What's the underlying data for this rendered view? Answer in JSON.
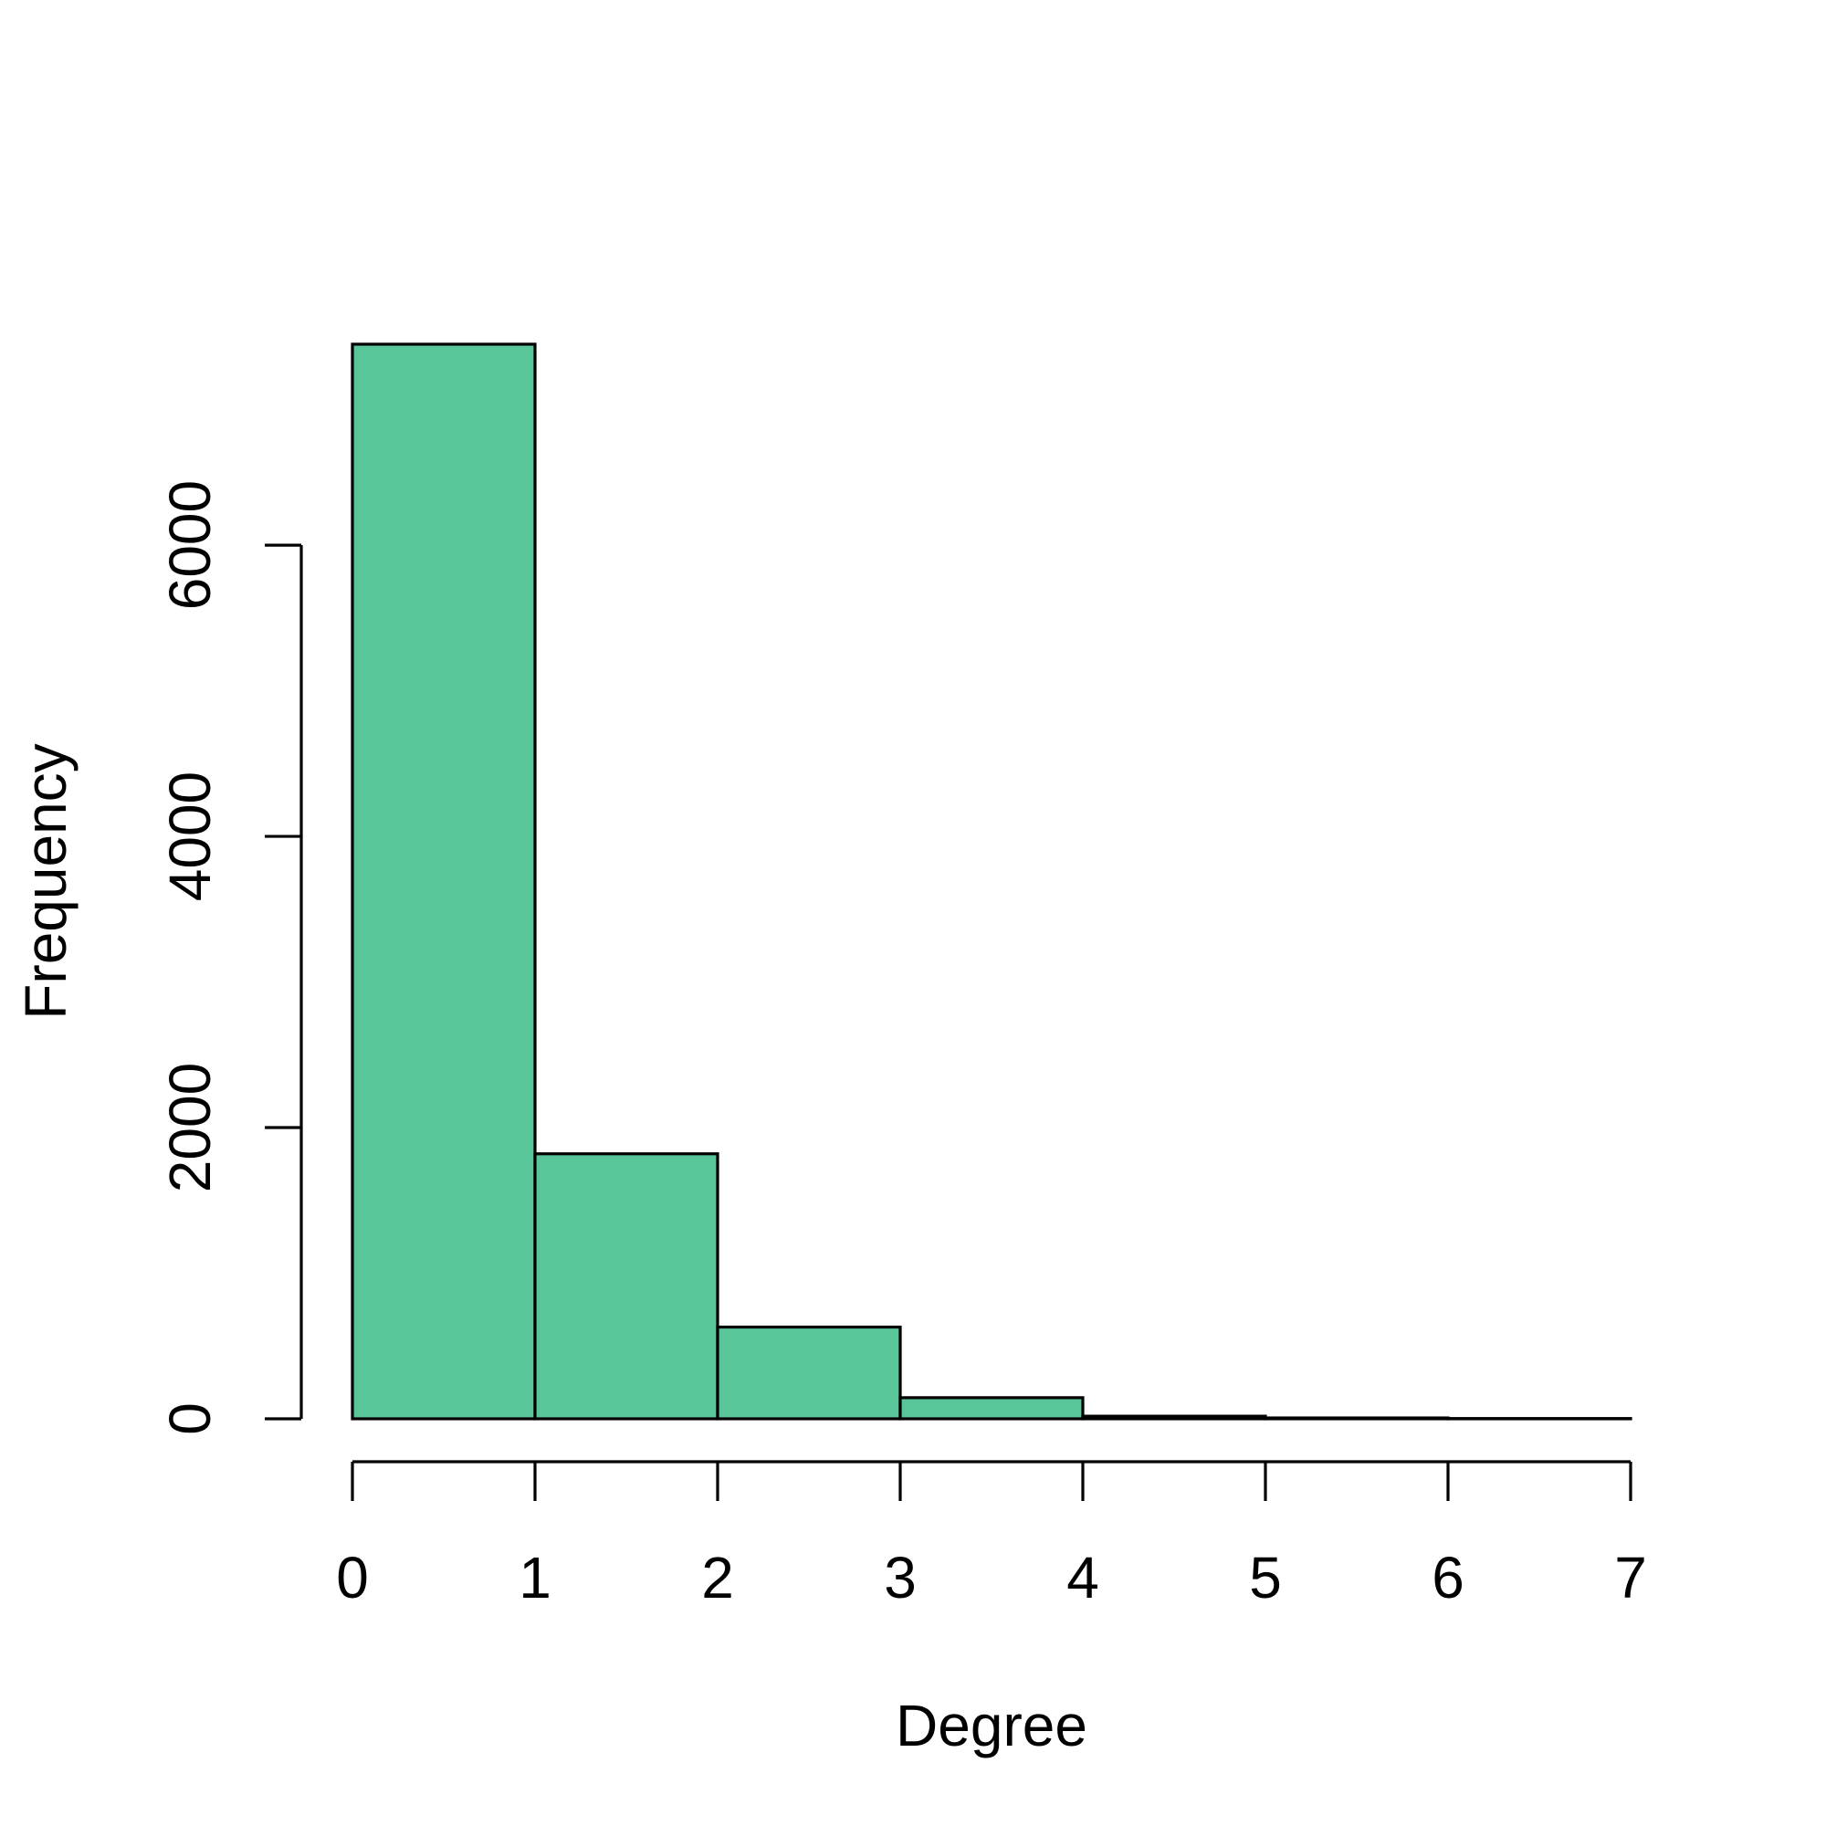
{
  "chart_data": {
    "type": "bar",
    "title": "",
    "xlabel": "Degree",
    "ylabel": "Frequency",
    "bins": [
      {
        "from": 0,
        "to": 1,
        "value": 7380
      },
      {
        "from": 1,
        "to": 2,
        "value": 1820
      },
      {
        "from": 2,
        "to": 3,
        "value": 630
      },
      {
        "from": 3,
        "to": 4,
        "value": 145
      },
      {
        "from": 4,
        "to": 5,
        "value": 18
      },
      {
        "from": 5,
        "to": 6,
        "value": 6
      },
      {
        "from": 6,
        "to": 7,
        "value": 2
      }
    ],
    "xlim": [
      0,
      7
    ],
    "ylim": [
      0,
      7380
    ],
    "x_ticks": [
      0,
      1,
      2,
      3,
      4,
      5,
      6,
      7
    ],
    "y_ticks": [
      0,
      2000,
      4000,
      6000
    ],
    "bar_color": "#59c69a",
    "border_color": "#000000",
    "grid": false,
    "legend": "none"
  }
}
